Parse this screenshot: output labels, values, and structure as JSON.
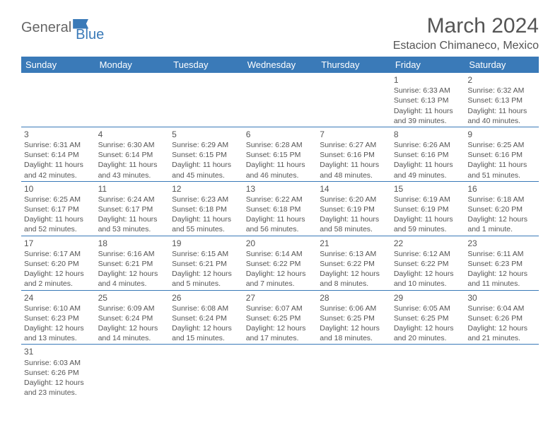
{
  "logo": {
    "general": "General",
    "blue": "Blue"
  },
  "title": "March 2024",
  "location": "Estacion Chimaneco, Mexico",
  "headers": [
    "Sunday",
    "Monday",
    "Tuesday",
    "Wednesday",
    "Thursday",
    "Friday",
    "Saturday"
  ],
  "colors": {
    "accent": "#3a7ab8",
    "text": "#555555",
    "background": "#ffffff"
  },
  "weeks": [
    [
      null,
      null,
      null,
      null,
      null,
      {
        "n": "1",
        "sr": "Sunrise: 6:33 AM",
        "ss": "Sunset: 6:13 PM",
        "d1": "Daylight: 11 hours",
        "d2": "and 39 minutes."
      },
      {
        "n": "2",
        "sr": "Sunrise: 6:32 AM",
        "ss": "Sunset: 6:13 PM",
        "d1": "Daylight: 11 hours",
        "d2": "and 40 minutes."
      }
    ],
    [
      {
        "n": "3",
        "sr": "Sunrise: 6:31 AM",
        "ss": "Sunset: 6:14 PM",
        "d1": "Daylight: 11 hours",
        "d2": "and 42 minutes."
      },
      {
        "n": "4",
        "sr": "Sunrise: 6:30 AM",
        "ss": "Sunset: 6:14 PM",
        "d1": "Daylight: 11 hours",
        "d2": "and 43 minutes."
      },
      {
        "n": "5",
        "sr": "Sunrise: 6:29 AM",
        "ss": "Sunset: 6:15 PM",
        "d1": "Daylight: 11 hours",
        "d2": "and 45 minutes."
      },
      {
        "n": "6",
        "sr": "Sunrise: 6:28 AM",
        "ss": "Sunset: 6:15 PM",
        "d1": "Daylight: 11 hours",
        "d2": "and 46 minutes."
      },
      {
        "n": "7",
        "sr": "Sunrise: 6:27 AM",
        "ss": "Sunset: 6:16 PM",
        "d1": "Daylight: 11 hours",
        "d2": "and 48 minutes."
      },
      {
        "n": "8",
        "sr": "Sunrise: 6:26 AM",
        "ss": "Sunset: 6:16 PM",
        "d1": "Daylight: 11 hours",
        "d2": "and 49 minutes."
      },
      {
        "n": "9",
        "sr": "Sunrise: 6:25 AM",
        "ss": "Sunset: 6:16 PM",
        "d1": "Daylight: 11 hours",
        "d2": "and 51 minutes."
      }
    ],
    [
      {
        "n": "10",
        "sr": "Sunrise: 6:25 AM",
        "ss": "Sunset: 6:17 PM",
        "d1": "Daylight: 11 hours",
        "d2": "and 52 minutes."
      },
      {
        "n": "11",
        "sr": "Sunrise: 6:24 AM",
        "ss": "Sunset: 6:17 PM",
        "d1": "Daylight: 11 hours",
        "d2": "and 53 minutes."
      },
      {
        "n": "12",
        "sr": "Sunrise: 6:23 AM",
        "ss": "Sunset: 6:18 PM",
        "d1": "Daylight: 11 hours",
        "d2": "and 55 minutes."
      },
      {
        "n": "13",
        "sr": "Sunrise: 6:22 AM",
        "ss": "Sunset: 6:18 PM",
        "d1": "Daylight: 11 hours",
        "d2": "and 56 minutes."
      },
      {
        "n": "14",
        "sr": "Sunrise: 6:20 AM",
        "ss": "Sunset: 6:19 PM",
        "d1": "Daylight: 11 hours",
        "d2": "and 58 minutes."
      },
      {
        "n": "15",
        "sr": "Sunrise: 6:19 AM",
        "ss": "Sunset: 6:19 PM",
        "d1": "Daylight: 11 hours",
        "d2": "and 59 minutes."
      },
      {
        "n": "16",
        "sr": "Sunrise: 6:18 AM",
        "ss": "Sunset: 6:20 PM",
        "d1": "Daylight: 12 hours",
        "d2": "and 1 minute."
      }
    ],
    [
      {
        "n": "17",
        "sr": "Sunrise: 6:17 AM",
        "ss": "Sunset: 6:20 PM",
        "d1": "Daylight: 12 hours",
        "d2": "and 2 minutes."
      },
      {
        "n": "18",
        "sr": "Sunrise: 6:16 AM",
        "ss": "Sunset: 6:21 PM",
        "d1": "Daylight: 12 hours",
        "d2": "and 4 minutes."
      },
      {
        "n": "19",
        "sr": "Sunrise: 6:15 AM",
        "ss": "Sunset: 6:21 PM",
        "d1": "Daylight: 12 hours",
        "d2": "and 5 minutes."
      },
      {
        "n": "20",
        "sr": "Sunrise: 6:14 AM",
        "ss": "Sunset: 6:22 PM",
        "d1": "Daylight: 12 hours",
        "d2": "and 7 minutes."
      },
      {
        "n": "21",
        "sr": "Sunrise: 6:13 AM",
        "ss": "Sunset: 6:22 PM",
        "d1": "Daylight: 12 hours",
        "d2": "and 8 minutes."
      },
      {
        "n": "22",
        "sr": "Sunrise: 6:12 AM",
        "ss": "Sunset: 6:22 PM",
        "d1": "Daylight: 12 hours",
        "d2": "and 10 minutes."
      },
      {
        "n": "23",
        "sr": "Sunrise: 6:11 AM",
        "ss": "Sunset: 6:23 PM",
        "d1": "Daylight: 12 hours",
        "d2": "and 11 minutes."
      }
    ],
    [
      {
        "n": "24",
        "sr": "Sunrise: 6:10 AM",
        "ss": "Sunset: 6:23 PM",
        "d1": "Daylight: 12 hours",
        "d2": "and 13 minutes."
      },
      {
        "n": "25",
        "sr": "Sunrise: 6:09 AM",
        "ss": "Sunset: 6:24 PM",
        "d1": "Daylight: 12 hours",
        "d2": "and 14 minutes."
      },
      {
        "n": "26",
        "sr": "Sunrise: 6:08 AM",
        "ss": "Sunset: 6:24 PM",
        "d1": "Daylight: 12 hours",
        "d2": "and 15 minutes."
      },
      {
        "n": "27",
        "sr": "Sunrise: 6:07 AM",
        "ss": "Sunset: 6:25 PM",
        "d1": "Daylight: 12 hours",
        "d2": "and 17 minutes."
      },
      {
        "n": "28",
        "sr": "Sunrise: 6:06 AM",
        "ss": "Sunset: 6:25 PM",
        "d1": "Daylight: 12 hours",
        "d2": "and 18 minutes."
      },
      {
        "n": "29",
        "sr": "Sunrise: 6:05 AM",
        "ss": "Sunset: 6:25 PM",
        "d1": "Daylight: 12 hours",
        "d2": "and 20 minutes."
      },
      {
        "n": "30",
        "sr": "Sunrise: 6:04 AM",
        "ss": "Sunset: 6:26 PM",
        "d1": "Daylight: 12 hours",
        "d2": "and 21 minutes."
      }
    ],
    [
      {
        "n": "31",
        "sr": "Sunrise: 6:03 AM",
        "ss": "Sunset: 6:26 PM",
        "d1": "Daylight: 12 hours",
        "d2": "and 23 minutes."
      },
      null,
      null,
      null,
      null,
      null,
      null
    ]
  ]
}
